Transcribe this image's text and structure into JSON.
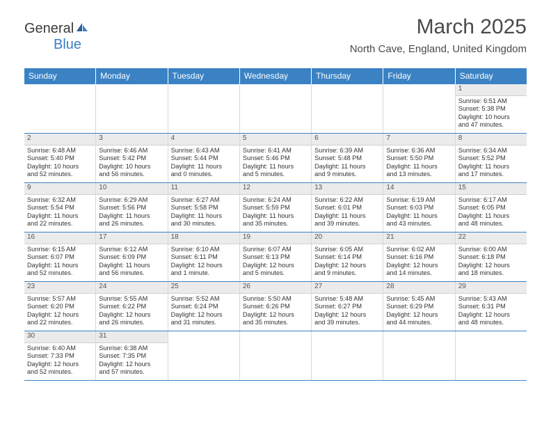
{
  "logo": {
    "text1": "General",
    "text2": "Blue"
  },
  "title": "March 2025",
  "subtitle": "North Cave, England, United Kingdom",
  "colors": {
    "header_bg": "#3a82c4",
    "header_text": "#ffffff",
    "daynum_bg": "#ebebeb",
    "row_border": "#3a82c4",
    "cell_border": "#d8d8d8",
    "text": "#333333",
    "title_color": "#4a4a4a"
  },
  "weekdays": [
    "Sunday",
    "Monday",
    "Tuesday",
    "Wednesday",
    "Thursday",
    "Friday",
    "Saturday"
  ],
  "weeks": [
    [
      {
        "empty": true
      },
      {
        "empty": true
      },
      {
        "empty": true
      },
      {
        "empty": true
      },
      {
        "empty": true
      },
      {
        "empty": true
      },
      {
        "day": "1",
        "sunrise": "Sunrise: 6:51 AM",
        "sunset": "Sunset: 5:38 PM",
        "daylight1": "Daylight: 10 hours",
        "daylight2": "and 47 minutes."
      }
    ],
    [
      {
        "day": "2",
        "sunrise": "Sunrise: 6:48 AM",
        "sunset": "Sunset: 5:40 PM",
        "daylight1": "Daylight: 10 hours",
        "daylight2": "and 52 minutes."
      },
      {
        "day": "3",
        "sunrise": "Sunrise: 6:46 AM",
        "sunset": "Sunset: 5:42 PM",
        "daylight1": "Daylight: 10 hours",
        "daylight2": "and 56 minutes."
      },
      {
        "day": "4",
        "sunrise": "Sunrise: 6:43 AM",
        "sunset": "Sunset: 5:44 PM",
        "daylight1": "Daylight: 11 hours",
        "daylight2": "and 0 minutes."
      },
      {
        "day": "5",
        "sunrise": "Sunrise: 6:41 AM",
        "sunset": "Sunset: 5:46 PM",
        "daylight1": "Daylight: 11 hours",
        "daylight2": "and 5 minutes."
      },
      {
        "day": "6",
        "sunrise": "Sunrise: 6:39 AM",
        "sunset": "Sunset: 5:48 PM",
        "daylight1": "Daylight: 11 hours",
        "daylight2": "and 9 minutes."
      },
      {
        "day": "7",
        "sunrise": "Sunrise: 6:36 AM",
        "sunset": "Sunset: 5:50 PM",
        "daylight1": "Daylight: 11 hours",
        "daylight2": "and 13 minutes."
      },
      {
        "day": "8",
        "sunrise": "Sunrise: 6:34 AM",
        "sunset": "Sunset: 5:52 PM",
        "daylight1": "Daylight: 11 hours",
        "daylight2": "and 17 minutes."
      }
    ],
    [
      {
        "day": "9",
        "sunrise": "Sunrise: 6:32 AM",
        "sunset": "Sunset: 5:54 PM",
        "daylight1": "Daylight: 11 hours",
        "daylight2": "and 22 minutes."
      },
      {
        "day": "10",
        "sunrise": "Sunrise: 6:29 AM",
        "sunset": "Sunset: 5:56 PM",
        "daylight1": "Daylight: 11 hours",
        "daylight2": "and 26 minutes."
      },
      {
        "day": "11",
        "sunrise": "Sunrise: 6:27 AM",
        "sunset": "Sunset: 5:58 PM",
        "daylight1": "Daylight: 11 hours",
        "daylight2": "and 30 minutes."
      },
      {
        "day": "12",
        "sunrise": "Sunrise: 6:24 AM",
        "sunset": "Sunset: 5:59 PM",
        "daylight1": "Daylight: 11 hours",
        "daylight2": "and 35 minutes."
      },
      {
        "day": "13",
        "sunrise": "Sunrise: 6:22 AM",
        "sunset": "Sunset: 6:01 PM",
        "daylight1": "Daylight: 11 hours",
        "daylight2": "and 39 minutes."
      },
      {
        "day": "14",
        "sunrise": "Sunrise: 6:19 AM",
        "sunset": "Sunset: 6:03 PM",
        "daylight1": "Daylight: 11 hours",
        "daylight2": "and 43 minutes."
      },
      {
        "day": "15",
        "sunrise": "Sunrise: 6:17 AM",
        "sunset": "Sunset: 6:05 PM",
        "daylight1": "Daylight: 11 hours",
        "daylight2": "and 48 minutes."
      }
    ],
    [
      {
        "day": "16",
        "sunrise": "Sunrise: 6:15 AM",
        "sunset": "Sunset: 6:07 PM",
        "daylight1": "Daylight: 11 hours",
        "daylight2": "and 52 minutes."
      },
      {
        "day": "17",
        "sunrise": "Sunrise: 6:12 AM",
        "sunset": "Sunset: 6:09 PM",
        "daylight1": "Daylight: 11 hours",
        "daylight2": "and 56 minutes."
      },
      {
        "day": "18",
        "sunrise": "Sunrise: 6:10 AM",
        "sunset": "Sunset: 6:11 PM",
        "daylight1": "Daylight: 12 hours",
        "daylight2": "and 1 minute."
      },
      {
        "day": "19",
        "sunrise": "Sunrise: 6:07 AM",
        "sunset": "Sunset: 6:13 PM",
        "daylight1": "Daylight: 12 hours",
        "daylight2": "and 5 minutes."
      },
      {
        "day": "20",
        "sunrise": "Sunrise: 6:05 AM",
        "sunset": "Sunset: 6:14 PM",
        "daylight1": "Daylight: 12 hours",
        "daylight2": "and 9 minutes."
      },
      {
        "day": "21",
        "sunrise": "Sunrise: 6:02 AM",
        "sunset": "Sunset: 6:16 PM",
        "daylight1": "Daylight: 12 hours",
        "daylight2": "and 14 minutes."
      },
      {
        "day": "22",
        "sunrise": "Sunrise: 6:00 AM",
        "sunset": "Sunset: 6:18 PM",
        "daylight1": "Daylight: 12 hours",
        "daylight2": "and 18 minutes."
      }
    ],
    [
      {
        "day": "23",
        "sunrise": "Sunrise: 5:57 AM",
        "sunset": "Sunset: 6:20 PM",
        "daylight1": "Daylight: 12 hours",
        "daylight2": "and 22 minutes."
      },
      {
        "day": "24",
        "sunrise": "Sunrise: 5:55 AM",
        "sunset": "Sunset: 6:22 PM",
        "daylight1": "Daylight: 12 hours",
        "daylight2": "and 26 minutes."
      },
      {
        "day": "25",
        "sunrise": "Sunrise: 5:52 AM",
        "sunset": "Sunset: 6:24 PM",
        "daylight1": "Daylight: 12 hours",
        "daylight2": "and 31 minutes."
      },
      {
        "day": "26",
        "sunrise": "Sunrise: 5:50 AM",
        "sunset": "Sunset: 6:26 PM",
        "daylight1": "Daylight: 12 hours",
        "daylight2": "and 35 minutes."
      },
      {
        "day": "27",
        "sunrise": "Sunrise: 5:48 AM",
        "sunset": "Sunset: 6:27 PM",
        "daylight1": "Daylight: 12 hours",
        "daylight2": "and 39 minutes."
      },
      {
        "day": "28",
        "sunrise": "Sunrise: 5:45 AM",
        "sunset": "Sunset: 6:29 PM",
        "daylight1": "Daylight: 12 hours",
        "daylight2": "and 44 minutes."
      },
      {
        "day": "29",
        "sunrise": "Sunrise: 5:43 AM",
        "sunset": "Sunset: 6:31 PM",
        "daylight1": "Daylight: 12 hours",
        "daylight2": "and 48 minutes."
      }
    ],
    [
      {
        "day": "30",
        "sunrise": "Sunrise: 6:40 AM",
        "sunset": "Sunset: 7:33 PM",
        "daylight1": "Daylight: 12 hours",
        "daylight2": "and 52 minutes."
      },
      {
        "day": "31",
        "sunrise": "Sunrise: 6:38 AM",
        "sunset": "Sunset: 7:35 PM",
        "daylight1": "Daylight: 12 hours",
        "daylight2": "and 57 minutes."
      },
      {
        "empty": true
      },
      {
        "empty": true
      },
      {
        "empty": true
      },
      {
        "empty": true
      },
      {
        "empty": true
      }
    ]
  ]
}
